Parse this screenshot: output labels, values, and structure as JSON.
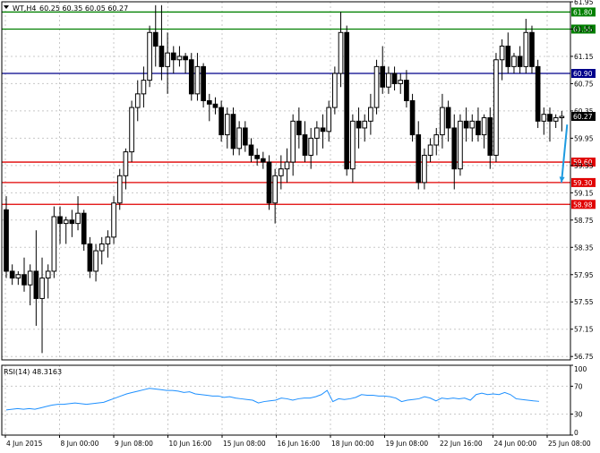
{
  "header": {
    "symbol_label": "WT,H4",
    "ohlc_text": "60.25 60.35 60.05 60.27"
  },
  "rsi_header": {
    "label": "RSI(14)",
    "value": "48.3163"
  },
  "colors": {
    "background": "#ffffff",
    "candle": "#000000",
    "grid": "#c8c8c8",
    "resistance": "#008000",
    "pivot": "#00008b",
    "support": "#e00000",
    "rsi_line": "#1e90ff",
    "forecast_arrow": "#1e9be0",
    "current_price_tag": "#000000"
  },
  "chart_data": [
    {
      "type": "candlestick",
      "symbol": "WT",
      "timeframe": "H4",
      "y_range": [
        56.7,
        61.95
      ],
      "y_ticks": [
        "61.95",
        "61.55",
        "61.15",
        "60.75",
        "60.35",
        "59.95",
        "59.55",
        "59.15",
        "58.75",
        "58.35",
        "57.95",
        "57.55",
        "57.15",
        "56.75"
      ],
      "x_labels": [
        "4 Jun 2015",
        "8 Jun 00:00",
        "9 Jun 08:00",
        "10 Jun 16:00",
        "15 Jun 08:00",
        "16 Jun 16:00",
        "18 Jun 00:00",
        "19 Jun 08:00",
        "22 Jun 16:00",
        "24 Jun 00:00",
        "25 Jun 08:00"
      ],
      "grid": true,
      "price_levels": [
        {
          "label": "61.80",
          "value": 61.8,
          "color": "#008000"
        },
        {
          "label": "61.55",
          "value": 61.55,
          "color": "#008000"
        },
        {
          "label": "60.90",
          "value": 60.9,
          "color": "#00008b"
        },
        {
          "label": "59.60",
          "value": 59.6,
          "color": "#e00000"
        },
        {
          "label": "59.30",
          "value": 59.3,
          "color": "#e00000"
        },
        {
          "label": "58.98",
          "value": 58.98,
          "color": "#e00000"
        }
      ],
      "current_price": {
        "label": "60.27",
        "value": 60.27
      },
      "ohlc": [
        [
          58.9,
          59.1,
          57.9,
          58.0
        ],
        [
          58.0,
          58.1,
          57.8,
          57.9
        ],
        [
          57.9,
          58.0,
          57.8,
          57.95
        ],
        [
          57.95,
          58.2,
          57.7,
          57.8
        ],
        [
          57.8,
          58.1,
          57.5,
          58.0
        ],
        [
          58.0,
          58.6,
          57.2,
          57.6
        ],
        [
          57.6,
          58.2,
          56.8,
          57.9
        ],
        [
          57.9,
          58.1,
          57.6,
          58.0
        ],
        [
          58.0,
          58.95,
          57.9,
          58.8
        ],
        [
          58.8,
          58.95,
          58.4,
          58.7
        ],
        [
          58.7,
          58.8,
          58.4,
          58.75
        ],
        [
          58.75,
          58.9,
          58.5,
          58.7
        ],
        [
          58.7,
          59.1,
          58.6,
          58.85
        ],
        [
          58.85,
          58.9,
          58.3,
          58.4
        ],
        [
          58.4,
          58.5,
          57.9,
          58.0
        ],
        [
          58.0,
          58.4,
          57.85,
          58.3
        ],
        [
          58.3,
          58.5,
          58.1,
          58.4
        ],
        [
          58.4,
          58.6,
          58.2,
          58.5
        ],
        [
          58.5,
          59.1,
          58.4,
          59.0
        ],
        [
          59.0,
          59.5,
          58.9,
          59.4
        ],
        [
          59.4,
          59.8,
          59.2,
          59.75
        ],
        [
          59.75,
          60.5,
          59.6,
          60.4
        ],
        [
          60.4,
          60.8,
          60.2,
          60.6
        ],
        [
          60.6,
          61.0,
          60.4,
          60.8
        ],
        [
          60.8,
          61.6,
          60.7,
          61.5
        ],
        [
          61.5,
          61.9,
          61.0,
          61.3
        ],
        [
          61.3,
          61.9,
          60.8,
          61.0
        ],
        [
          61.0,
          61.5,
          60.6,
          61.2
        ],
        [
          61.2,
          61.3,
          60.9,
          61.1
        ],
        [
          61.1,
          61.3,
          61.0,
          61.15
        ],
        [
          61.15,
          61.2,
          60.9,
          61.1
        ],
        [
          61.1,
          61.2,
          60.5,
          60.6
        ],
        [
          60.6,
          61.2,
          60.5,
          61.0
        ],
        [
          61.0,
          61.05,
          60.4,
          60.5
        ],
        [
          60.5,
          60.6,
          60.2,
          60.45
        ],
        [
          60.45,
          60.55,
          60.3,
          60.4
        ],
        [
          60.4,
          60.5,
          59.9,
          60.0
        ],
        [
          60.0,
          60.4,
          59.8,
          60.3
        ],
        [
          60.3,
          60.4,
          59.7,
          59.8
        ],
        [
          59.8,
          60.2,
          59.7,
          60.1
        ],
        [
          60.1,
          60.2,
          59.75,
          59.85
        ],
        [
          59.85,
          59.95,
          59.6,
          59.7
        ],
        [
          59.7,
          59.8,
          59.55,
          59.65
        ],
        [
          59.65,
          59.75,
          59.5,
          59.6
        ],
        [
          59.6,
          59.7,
          58.9,
          59.0
        ],
        [
          59.0,
          59.5,
          58.7,
          59.4
        ],
        [
          59.4,
          59.7,
          59.2,
          59.5
        ],
        [
          59.5,
          59.8,
          59.3,
          59.6
        ],
        [
          59.6,
          60.3,
          59.4,
          60.2
        ],
        [
          60.2,
          60.4,
          59.8,
          60.0
        ],
        [
          60.0,
          60.2,
          59.6,
          59.7
        ],
        [
          59.7,
          60.1,
          59.5,
          59.95
        ],
        [
          59.95,
          60.2,
          59.7,
          60.1
        ],
        [
          60.1,
          60.3,
          59.8,
          60.05
        ],
        [
          60.05,
          60.5,
          59.9,
          60.4
        ],
        [
          60.4,
          61.0,
          60.3,
          60.9
        ],
        [
          60.9,
          61.8,
          60.7,
          61.5
        ],
        [
          61.5,
          61.6,
          59.4,
          59.5
        ],
        [
          59.5,
          60.3,
          59.3,
          60.2
        ],
        [
          60.2,
          60.4,
          59.8,
          60.1
        ],
        [
          60.1,
          60.3,
          59.9,
          60.2
        ],
        [
          60.2,
          60.6,
          60.0,
          60.4
        ],
        [
          60.4,
          61.1,
          60.3,
          61.0
        ],
        [
          61.0,
          61.3,
          60.6,
          60.7
        ],
        [
          60.7,
          61.0,
          60.6,
          60.9
        ],
        [
          60.9,
          61.0,
          60.65,
          60.75
        ],
        [
          60.75,
          60.9,
          60.6,
          60.8
        ],
        [
          60.8,
          60.95,
          60.4,
          60.5
        ],
        [
          60.5,
          60.6,
          59.9,
          60.0
        ],
        [
          60.0,
          60.2,
          59.2,
          59.3
        ],
        [
          59.3,
          59.8,
          59.2,
          59.7
        ],
        [
          59.7,
          59.95,
          59.6,
          59.85
        ],
        [
          59.85,
          60.1,
          59.7,
          60.0
        ],
        [
          60.0,
          60.6,
          59.8,
          60.4
        ],
        [
          60.4,
          60.5,
          59.9,
          60.1
        ],
        [
          60.1,
          60.3,
          59.2,
          59.5
        ],
        [
          59.5,
          60.3,
          59.4,
          60.2
        ],
        [
          60.2,
          60.4,
          59.9,
          60.1
        ],
        [
          60.1,
          60.3,
          59.9,
          60.2
        ],
        [
          60.2,
          60.4,
          59.9,
          60.0
        ],
        [
          60.0,
          60.3,
          59.8,
          60.25
        ],
        [
          60.25,
          60.4,
          59.5,
          59.7
        ],
        [
          59.7,
          61.2,
          59.6,
          61.1
        ],
        [
          61.1,
          61.4,
          60.8,
          61.3
        ],
        [
          61.3,
          61.5,
          60.9,
          61.0
        ],
        [
          61.0,
          61.2,
          60.9,
          61.15
        ],
        [
          61.15,
          61.3,
          60.9,
          61.0
        ],
        [
          61.0,
          61.7,
          60.9,
          61.5
        ],
        [
          61.5,
          61.6,
          60.9,
          61.0
        ],
        [
          61.0,
          61.1,
          60.1,
          60.2
        ],
        [
          60.2,
          60.4,
          60.0,
          60.3
        ],
        [
          60.3,
          60.4,
          59.9,
          60.2
        ],
        [
          60.2,
          60.3,
          60.1,
          60.25
        ],
        [
          60.25,
          60.35,
          60.05,
          60.27
        ]
      ]
    },
    {
      "type": "line",
      "title": "RSI(14) 48.3163",
      "y_range": [
        0,
        100
      ],
      "y_ticks": [
        "100",
        "70",
        "30",
        "0"
      ],
      "levels": [
        70,
        30
      ],
      "values": [
        36,
        37,
        38,
        37,
        38,
        37,
        39,
        41,
        43,
        44,
        44,
        45,
        46,
        45,
        44,
        45,
        46,
        47,
        50,
        53,
        56,
        59,
        61,
        63,
        65,
        67,
        66,
        65,
        64,
        64,
        63,
        61,
        62,
        59,
        58,
        57,
        56,
        56,
        54,
        55,
        53,
        52,
        51,
        50,
        46,
        48,
        49,
        50,
        53,
        52,
        50,
        52,
        53,
        53,
        55,
        58,
        64,
        48,
        52,
        51,
        52,
        54,
        58,
        57,
        57,
        56,
        56,
        55,
        53,
        48,
        50,
        51,
        52,
        55,
        53,
        49,
        53,
        52,
        53,
        52,
        53,
        50,
        58,
        60,
        58,
        59,
        58,
        61,
        58,
        52,
        51,
        50,
        49,
        48.3163
      ]
    }
  ]
}
